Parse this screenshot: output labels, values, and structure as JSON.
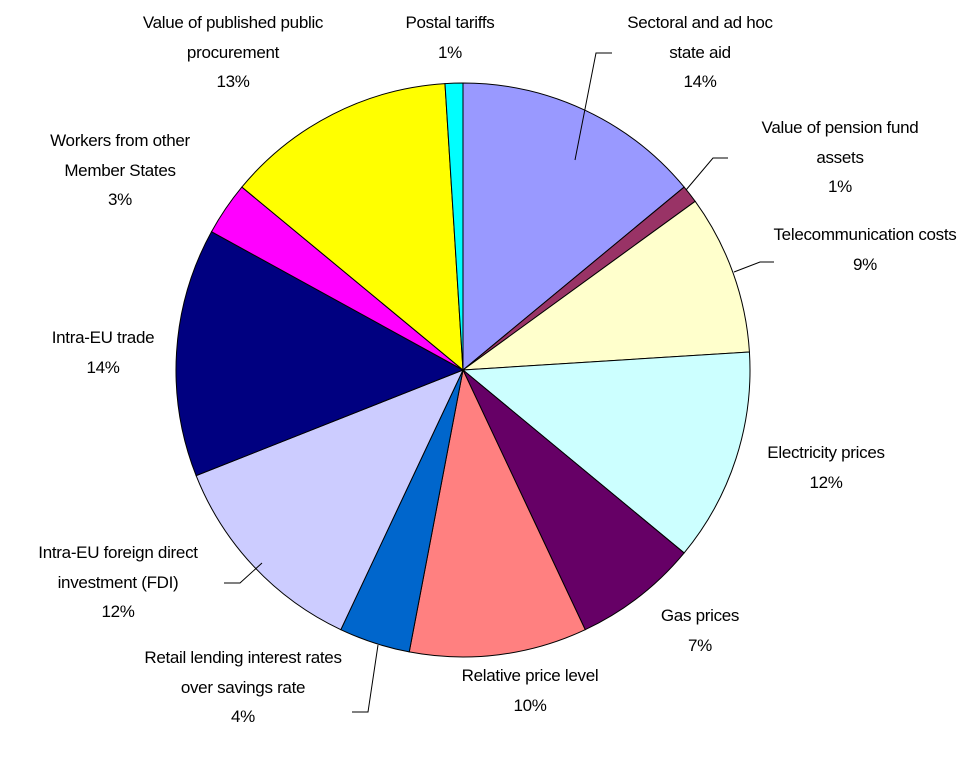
{
  "chart_data": {
    "type": "pie",
    "categories": [
      "Sectoral and ad hoc state aid",
      "Value of pension fund assets",
      "Telecommunication costs",
      "Electricity prices",
      "Gas prices",
      "Relative price level",
      "Retail lending interest rates over savings rate",
      "Intra-EU foreign direct investment (FDI)",
      "Intra-EU trade",
      "Workers from other Member States",
      "Value of published public procurement",
      "Postal tariffs"
    ],
    "values": [
      14,
      1,
      9,
      12,
      7,
      10,
      4,
      12,
      14,
      3,
      13,
      1
    ],
    "value_labels": [
      "14%",
      "1%",
      "9%",
      "12%",
      "7%",
      "10%",
      "4%",
      "12%",
      "14%",
      "3%",
      "13%",
      "1%"
    ],
    "colors": [
      "#9999FF",
      "#993366",
      "#FFFFCC",
      "#CCFFFF",
      "#660066",
      "#FF8080",
      "#0066CC",
      "#CCCCFF",
      "#000080",
      "#FF00FF",
      "#FFFF00",
      "#00FFFF"
    ]
  }
}
